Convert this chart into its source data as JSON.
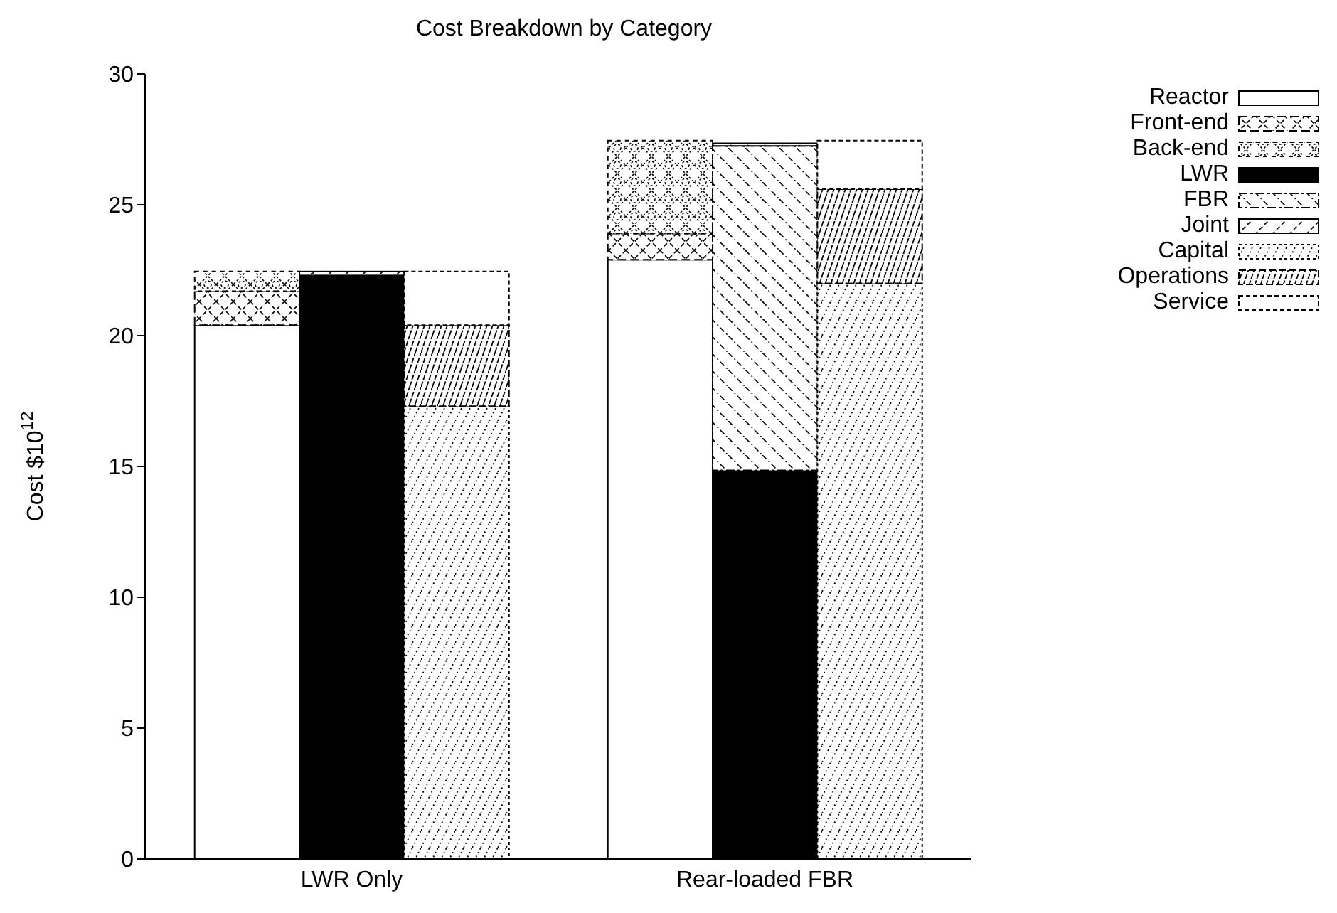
{
  "chart_data": {
    "type": "bar",
    "title": "Cost Breakdown by Category",
    "ylabel": "Cost $10$^{12}$",
    "categories": [
      "LWR Only",
      "Rear-loaded FBR"
    ],
    "legend": "top right",
    "ylim": [
      0,
      30
    ],
    "yticks": [
      0,
      5,
      10,
      15,
      20,
      25,
      30
    ],
    "series": [
      {
        "name": "Reactor",
        "color": "#ffffff",
        "base": [
          0,
          0
        ],
        "values": [
          20.4,
          22.9
        ]
      },
      {
        "name": "Front-end",
        "color": "#000000",
        "base": [
          20.4,
          22.9
        ],
        "values": [
          1.3,
          1.0
        ]
      },
      {
        "name": "Back-end",
        "color": "#000000",
        "base": [
          21.7,
          23.9
        ],
        "values": [
          0.75,
          3.55
        ]
      },
      {
        "name": "LWR",
        "color": "#000000",
        "base": [
          0,
          0
        ],
        "values": [
          22.3,
          14.85
        ]
      },
      {
        "name": "FBR",
        "color": "#000000",
        "base": [
          null,
          14.85
        ],
        "values": [
          null,
          12.4
        ]
      },
      {
        "name": "Joint",
        "color": "#000000",
        "base": [
          22.3,
          27.25
        ],
        "values": [
          0.15,
          0.1
        ]
      },
      {
        "name": "Capital",
        "color": "#000000",
        "base": [
          0,
          0
        ],
        "values": [
          17.3,
          22.0
        ]
      },
      {
        "name": "Operations",
        "color": "#000000",
        "base": [
          17.3,
          22.0
        ],
        "values": [
          3.1,
          3.6
        ]
      },
      {
        "name": "Service",
        "color": "#ffffff",
        "base": [
          20.4,
          25.6
        ],
        "values": [
          2.05,
          1.85
        ]
      }
    ]
  }
}
